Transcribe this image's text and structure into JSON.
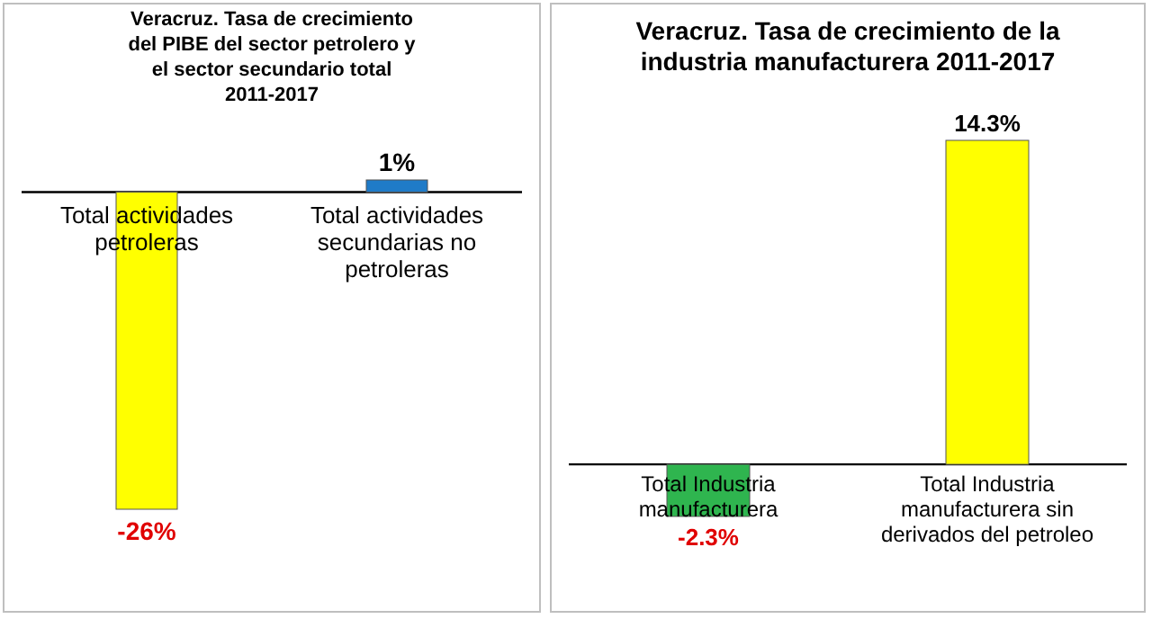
{
  "chart_data": [
    {
      "type": "bar",
      "title": "Veracruz. Tasa de crecimiento del PIBE del sector petrolero y el sector secundario total 2011-2017",
      "categories": [
        "Total actividades petroleras",
        "Total actividades secundarias no petroleras"
      ],
      "values": [
        -26,
        1
      ],
      "colors": [
        "#ffff00",
        "#1f7bc8"
      ],
      "value_labels": [
        "-26%",
        "1%"
      ]
    },
    {
      "type": "bar",
      "title": "Veracruz. Tasa de crecimiento de la industria manufacturera 2011-2017",
      "categories": [
        "Total Industria manufacturera",
        "Total Industria manufacturera sin derivados del petroleo"
      ],
      "values": [
        -2.3,
        14.3
      ],
      "colors": [
        "#2fb54f",
        "#ffff00"
      ],
      "value_labels": [
        "-2.3%",
        "14.3%"
      ]
    }
  ]
}
